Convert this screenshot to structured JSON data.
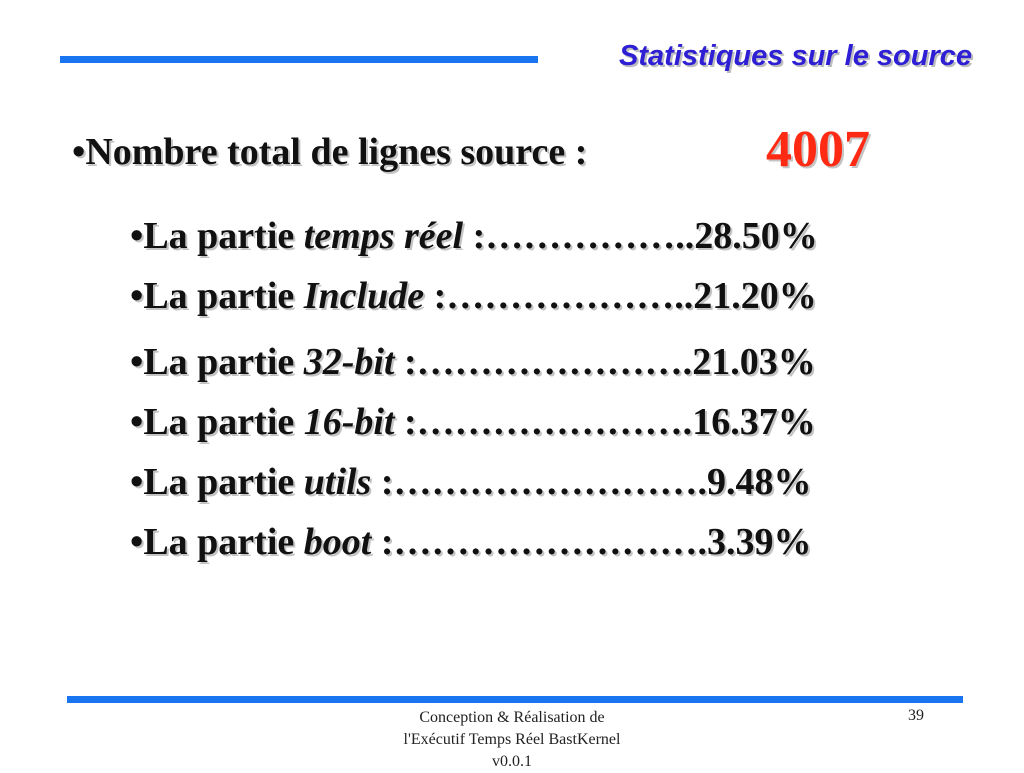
{
  "slide": {
    "title": "Statistiques sur le source",
    "main_bullet": {
      "marker": "•",
      "label": "Nombre total de lignes source :",
      "value": "4007"
    },
    "items": [
      {
        "marker": "•",
        "prefix": "La partie ",
        "name": "temps réel",
        "dots": " :……………..",
        "value": "28.50%"
      },
      {
        "marker": "•",
        "prefix": "La partie ",
        "name": "Include",
        "dots": " :………………..",
        "value": "21.20%"
      },
      {
        "marker": "•",
        "prefix": "La partie ",
        "name": "32-bit",
        "dots": " :………………….",
        "value": "21.03%"
      },
      {
        "marker": "•",
        "prefix": "La partie ",
        "name": "16-bit",
        "dots": " :………………….",
        "value": "16.37%"
      },
      {
        "marker": "•",
        "prefix": "La partie ",
        "name": "utils",
        "dots": " :…………………….",
        "value": "9.48%"
      },
      {
        "marker": "•",
        "prefix": "La partie ",
        "name": "boot",
        "dots": " :…………………….",
        "value": "3.39%"
      }
    ]
  },
  "footer": {
    "lines": [
      "Conception & Réalisation de",
      "l'Exécutif Temps Réel BastKernel",
      "v0.0.1"
    ],
    "page_number": "39"
  },
  "colors": {
    "accent_bar": "#1a75f0",
    "title": "#2e1fd4",
    "highlight_value": "#ff2a14",
    "text": "#111111"
  }
}
